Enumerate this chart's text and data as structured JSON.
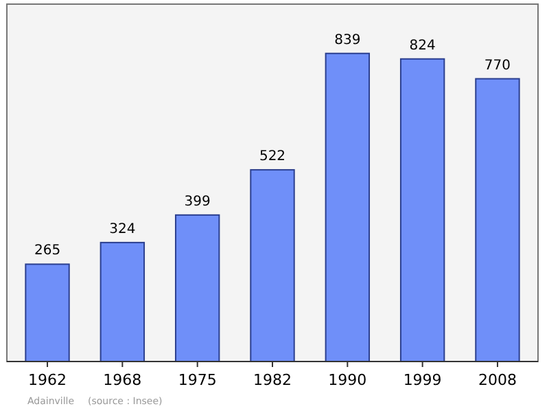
{
  "chart_data": {
    "type": "bar",
    "categories": [
      "1962",
      "1968",
      "1975",
      "1982",
      "1990",
      "1999",
      "2008"
    ],
    "values": [
      265,
      324,
      399,
      522,
      839,
      824,
      770
    ],
    "color": "#6f8ff9",
    "data_labels": true,
    "annotations": [
      "Adainville",
      "(source : Insee)"
    ]
  }
}
